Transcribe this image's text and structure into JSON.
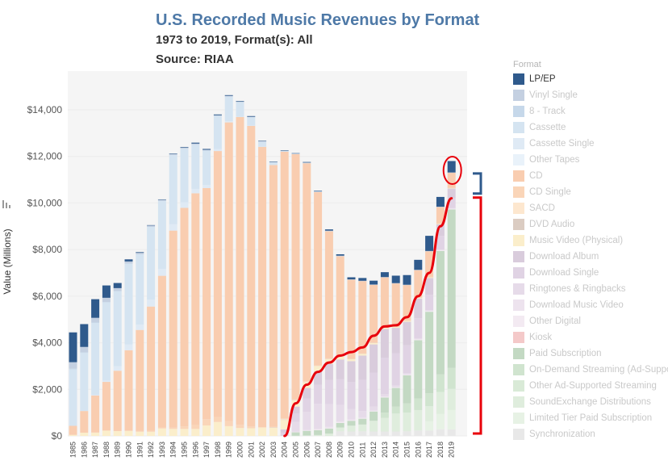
{
  "title": "U.S. Recorded Music Revenues by Format",
  "subtitle": "1973 to 2019, Format(s): All",
  "source": "Source: RIAA",
  "legend_title": "Format",
  "colors": {
    "highlight": "#2f5a8c",
    "annotation": "#e8000b",
    "annotation_bracket": "#2f5a8c",
    "plot_bg": "#f5f5f5"
  },
  "chart_data": {
    "type": "bar",
    "stacked": true,
    "title": "U.S. Recorded Music Revenues by Format",
    "ylabel": "Value (Millions)",
    "ylabel_icon": "sort-icon",
    "ylim": [
      0,
      15000
    ],
    "yticks": [
      0,
      2000,
      4000,
      6000,
      8000,
      10000,
      12000,
      14000
    ],
    "ytick_labels": [
      "$0",
      "$2,000",
      "$4,000",
      "$6,000",
      "$8,000",
      "$10,000",
      "$12,000",
      "$14,000"
    ],
    "categories": [
      "1985",
      "1986",
      "1987",
      "1988",
      "1989",
      "1990",
      "1991",
      "1992",
      "1993",
      "1994",
      "1995",
      "1996",
      "1997",
      "1998",
      "1999",
      "2000",
      "2001",
      "2002",
      "2003",
      "2004",
      "2005",
      "2006",
      "2007",
      "2008",
      "2009",
      "2010",
      "2011",
      "2012",
      "2013",
      "2014",
      "2015",
      "2016",
      "2017",
      "2018",
      "2019"
    ],
    "highlighted_series": "LP/EP",
    "series": [
      {
        "name": "LP/EP",
        "color": "#2f5a8c",
        "values": [
          1280,
          980,
          800,
          530,
          220,
          90,
          30,
          15,
          10,
          20,
          25,
          40,
          35,
          35,
          30,
          25,
          30,
          20,
          20,
          20,
          15,
          25,
          25,
          55,
          60,
          90,
          120,
          165,
          210,
          320,
          415,
          430,
          650,
          420,
          490
        ]
      },
      {
        "name": "Vinyl Single",
        "color": "#c4d0e1",
        "values": [
          280,
          230,
          200,
          180,
          120,
          90,
          60,
          60,
          50,
          50,
          45,
          45,
          35,
          25,
          30,
          25,
          15,
          15,
          15,
          15,
          15,
          15,
          15,
          10,
          10,
          10,
          10,
          10,
          10,
          10,
          10,
          10,
          10,
          10,
          10
        ]
      },
      {
        "name": "8 - Track",
        "color": "#c6d8ea",
        "values": [
          30,
          20,
          15,
          10,
          5,
          0,
          0,
          0,
          0,
          0,
          0,
          0,
          0,
          0,
          0,
          0,
          0,
          0,
          0,
          0,
          0,
          0,
          0,
          0,
          0,
          0,
          0,
          0,
          0,
          0,
          0,
          0,
          0,
          0,
          0
        ]
      },
      {
        "name": "Cassette",
        "color": "#d5e4f1",
        "values": [
          2420,
          2500,
          3100,
          3360,
          3230,
          3470,
          3020,
          3120,
          2920,
          2970,
          2300,
          1900,
          1480,
          1420,
          1060,
          620,
          360,
          210,
          110,
          25,
          15,
          5,
          2,
          1,
          1,
          0,
          0,
          0,
          0,
          0,
          0,
          0,
          0,
          0,
          0
        ]
      },
      {
        "name": "Cassette Single",
        "color": "#dfeaf5",
        "values": [
          0,
          0,
          20,
          60,
          190,
          250,
          230,
          300,
          300,
          270,
          240,
          190,
          130,
          90,
          50,
          15,
          5,
          2,
          0,
          0,
          0,
          0,
          0,
          0,
          0,
          0,
          0,
          0,
          0,
          0,
          0,
          0,
          0,
          0,
          0
        ]
      },
      {
        "name": "Other Tapes",
        "color": "#e9f2fa",
        "values": [
          0,
          0,
          0,
          0,
          0,
          0,
          0,
          0,
          0,
          0,
          0,
          0,
          0,
          0,
          0,
          0,
          0,
          0,
          0,
          0,
          0,
          0,
          0,
          0,
          0,
          0,
          0,
          0,
          0,
          0,
          0,
          0,
          0,
          0,
          0
        ]
      },
      {
        "name": "CD",
        "color": "#f9cdb0",
        "values": [
          390,
          930,
          1590,
          2090,
          2590,
          3450,
          4340,
          5330,
          6510,
          8460,
          9380,
          9930,
          9920,
          11420,
          12820,
          13210,
          12910,
          12040,
          11230,
          11450,
          10520,
          9370,
          7450,
          5470,
          4270,
          3390,
          3100,
          2480,
          2140,
          1850,
          1520,
          1170,
          1100,
          710,
          640
        ]
      },
      {
        "name": "CD Single",
        "color": "#fad5b8",
        "values": [
          0,
          0,
          0,
          0,
          0,
          10,
          30,
          45,
          45,
          55,
          110,
          185,
          270,
          210,
          220,
          140,
          80,
          20,
          30,
          20,
          10,
          10,
          10,
          10,
          10,
          5,
          5,
          5,
          5,
          5,
          5,
          5,
          5,
          5,
          5
        ]
      },
      {
        "name": "SACD",
        "color": "#fde7cf",
        "values": [
          0,
          0,
          0,
          0,
          0,
          0,
          0,
          0,
          0,
          0,
          0,
          0,
          0,
          0,
          0,
          0,
          0,
          0,
          0,
          25,
          20,
          10,
          5,
          5,
          2,
          0,
          0,
          0,
          0,
          0,
          0,
          0,
          0,
          0,
          0
        ]
      },
      {
        "name": "DVD Audio",
        "color": "#dbccc2",
        "values": [
          0,
          0,
          0,
          0,
          0,
          0,
          0,
          0,
          0,
          0,
          0,
          0,
          0,
          0,
          0,
          0,
          0,
          0,
          10,
          5,
          5,
          5,
          5,
          5,
          5,
          5,
          5,
          5,
          5,
          5,
          5,
          5,
          5,
          5,
          5
        ]
      },
      {
        "name": "Music Video (Physical)",
        "color": "#fbeecb",
        "values": [
          45,
          140,
          145,
          230,
          210,
          220,
          180,
          180,
          320,
          300,
          300,
          300,
          450,
          600,
          420,
          340,
          330,
          360,
          360,
          420,
          280,
          260,
          240,
          220,
          160,
          100,
          90,
          70,
          70,
          50,
          50,
          40,
          40,
          30,
          30
        ]
      },
      {
        "name": "Download Album",
        "color": "#d9ccdc",
        "values": [
          0,
          0,
          0,
          0,
          0,
          0,
          0,
          0,
          0,
          0,
          0,
          0,
          0,
          0,
          0,
          0,
          0,
          0,
          0,
          140,
          300,
          450,
          580,
          690,
          850,
          900,
          1040,
          1210,
          1230,
          1090,
          1010,
          850,
          720,
          490,
          420
        ]
      },
      {
        "name": "Download Single",
        "color": "#e0d3e4",
        "values": [
          0,
          0,
          0,
          0,
          0,
          0,
          0,
          0,
          0,
          0,
          0,
          0,
          0,
          0,
          0,
          0,
          0,
          0,
          0,
          140,
          360,
          580,
          810,
          1030,
          1100,
          1160,
          1340,
          1460,
          1570,
          1380,
          1190,
          860,
          660,
          590,
          420
        ]
      },
      {
        "name": "Ringtones & Ringbacks",
        "color": "#e6dbe9",
        "values": [
          0,
          0,
          0,
          0,
          0,
          0,
          0,
          0,
          0,
          0,
          0,
          0,
          0,
          0,
          0,
          0,
          0,
          0,
          0,
          0,
          420,
          770,
          1080,
          980,
          700,
          440,
          280,
          170,
          100,
          70,
          60,
          40,
          30,
          20,
          20
        ]
      },
      {
        "name": "Download Music Video",
        "color": "#ede3ee",
        "values": [
          0,
          0,
          0,
          0,
          0,
          0,
          0,
          0,
          0,
          0,
          0,
          0,
          0,
          0,
          0,
          0,
          0,
          0,
          0,
          0,
          10,
          20,
          30,
          50,
          50,
          40,
          30,
          20,
          20,
          20,
          20,
          20,
          20,
          20,
          20
        ]
      },
      {
        "name": "Other Digital",
        "color": "#f3eaf2",
        "values": [
          0,
          0,
          0,
          0,
          0,
          0,
          0,
          0,
          0,
          0,
          0,
          0,
          0,
          0,
          0,
          0,
          0,
          0,
          0,
          0,
          10,
          20,
          20,
          20,
          20,
          20,
          20,
          20,
          20,
          20,
          20,
          20,
          20,
          20,
          20
        ]
      },
      {
        "name": "Kiosk",
        "color": "#f4c9c9",
        "values": [
          0,
          0,
          0,
          0,
          0,
          0,
          0,
          0,
          0,
          0,
          0,
          0,
          0,
          0,
          0,
          0,
          0,
          0,
          0,
          0,
          0,
          0,
          0,
          0,
          0,
          0,
          0,
          0,
          0,
          0,
          0,
          0,
          0,
          0,
          0
        ]
      },
      {
        "name": "Paid Subscription",
        "color": "#c3d9c3",
        "values": [
          0,
          0,
          0,
          0,
          0,
          0,
          0,
          0,
          0,
          0,
          0,
          0,
          0,
          0,
          0,
          0,
          0,
          0,
          0,
          0,
          150,
          200,
          210,
          220,
          200,
          210,
          250,
          400,
          650,
          800,
          1200,
          2500,
          3500,
          5300,
          6800
        ]
      },
      {
        "name": "On-Demand Streaming (Ad-Supported)",
        "color": "#d0e4cf",
        "values": [
          0,
          0,
          0,
          0,
          0,
          0,
          0,
          0,
          0,
          0,
          0,
          0,
          0,
          0,
          0,
          0,
          0,
          0,
          0,
          0,
          0,
          0,
          0,
          0,
          0,
          0,
          0,
          0,
          220,
          300,
          400,
          500,
          550,
          750,
          900
        ]
      },
      {
        "name": "Other Ad-Supported Streaming",
        "color": "#d9ead7",
        "values": [
          0,
          0,
          0,
          0,
          0,
          0,
          0,
          0,
          0,
          0,
          0,
          0,
          0,
          0,
          0,
          0,
          0,
          0,
          0,
          0,
          0,
          0,
          0,
          0,
          0,
          0,
          0,
          0,
          0,
          0,
          0,
          0,
          0,
          0,
          0
        ]
      },
      {
        "name": "SoundExchange Distributions",
        "color": "#dfeddd",
        "values": [
          0,
          0,
          0,
          0,
          0,
          0,
          0,
          0,
          0,
          0,
          0,
          0,
          0,
          0,
          0,
          0,
          0,
          0,
          0,
          0,
          10,
          20,
          40,
          100,
          160,
          250,
          290,
          460,
          590,
          770,
          800,
          880,
          650,
          950,
          910
        ]
      },
      {
        "name": "Limited Tier Paid Subscription",
        "color": "#e7f2e5",
        "values": [
          0,
          0,
          0,
          0,
          0,
          0,
          0,
          0,
          0,
          0,
          0,
          0,
          0,
          0,
          0,
          0,
          0,
          0,
          0,
          0,
          0,
          0,
          0,
          0,
          0,
          0,
          0,
          0,
          0,
          0,
          0,
          0,
          400,
          650,
          830
        ]
      },
      {
        "name": "Synchronization",
        "color": "#e8e8e8",
        "values": [
          0,
          0,
          0,
          0,
          0,
          0,
          0,
          0,
          0,
          0,
          0,
          0,
          0,
          0,
          0,
          0,
          0,
          0,
          0,
          0,
          0,
          0,
          0,
          0,
          200,
          190,
          200,
          190,
          190,
          190,
          200,
          230,
          230,
          290,
          280
        ]
      }
    ],
    "annotations": {
      "trend_line": {
        "description": "digital revenue growth",
        "x": [
          "2004",
          "2005",
          "2006",
          "2007",
          "2008",
          "2009",
          "2010",
          "2011",
          "2012",
          "2013",
          "2014",
          "2015",
          "2016",
          "2017",
          "2018",
          "2019"
        ],
        "values": [
          0,
          1400,
          2200,
          2750,
          3150,
          3450,
          3600,
          3800,
          4300,
          4700,
          4750,
          5100,
          6000,
          7000,
          9000,
          10200
        ]
      },
      "circle_year": "2019",
      "bracket_blue_range": [
        10300,
        11300
      ],
      "bracket_red_range": [
        0,
        10300
      ]
    }
  }
}
